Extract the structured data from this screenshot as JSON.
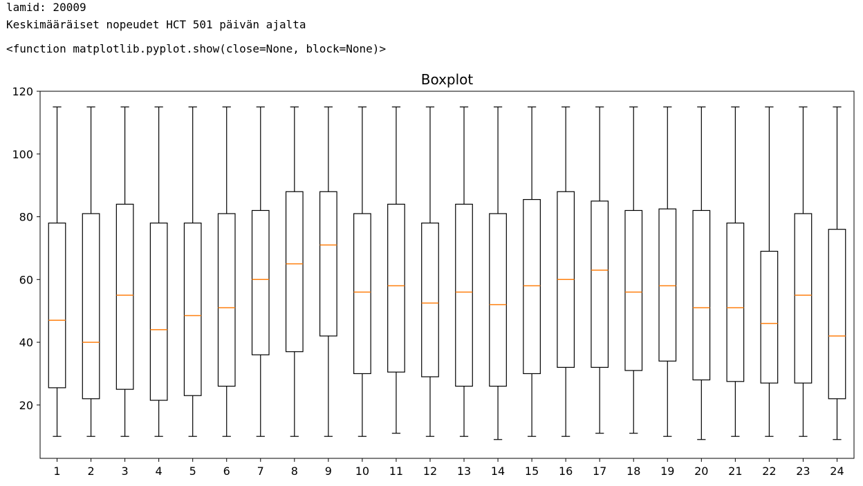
{
  "output": {
    "line1": "lamid: 20009",
    "line2": "Keskimääräiset nopeudet HCT 501 päivän ajalta",
    "line3": "<function matplotlib.pyplot.show(close=None, block=None)>"
  },
  "colors": {
    "box": "#000000",
    "median": "#ff7f0e",
    "axes": "#000000",
    "background": "#ffffff"
  },
  "chart_data": {
    "type": "boxplot",
    "title": "Boxplot",
    "xlabel": "",
    "ylabel": "",
    "ylim": [
      3,
      120
    ],
    "yticks": [
      20,
      40,
      60,
      80,
      100,
      120
    ],
    "grid": false,
    "categories": [
      "1",
      "2",
      "3",
      "4",
      "5",
      "6",
      "7",
      "8",
      "9",
      "10",
      "11",
      "12",
      "13",
      "14",
      "15",
      "16",
      "17",
      "18",
      "19",
      "20",
      "21",
      "22",
      "23",
      "24"
    ],
    "boxes": [
      {
        "whislo": 10,
        "q1": 25.5,
        "med": 47,
        "q3": 78,
        "whishi": 115
      },
      {
        "whislo": 10,
        "q1": 22,
        "med": 40,
        "q3": 81,
        "whishi": 115
      },
      {
        "whislo": 10,
        "q1": 25,
        "med": 55,
        "q3": 84,
        "whishi": 115
      },
      {
        "whislo": 10,
        "q1": 21.5,
        "med": 44,
        "q3": 78,
        "whishi": 115
      },
      {
        "whislo": 10,
        "q1": 23,
        "med": 48.5,
        "q3": 78,
        "whishi": 115
      },
      {
        "whislo": 10,
        "q1": 26,
        "med": 51,
        "q3": 81,
        "whishi": 115
      },
      {
        "whislo": 10,
        "q1": 36,
        "med": 60,
        "q3": 82,
        "whishi": 115
      },
      {
        "whislo": 10,
        "q1": 37,
        "med": 65,
        "q3": 88,
        "whishi": 115
      },
      {
        "whislo": 10,
        "q1": 42,
        "med": 71,
        "q3": 88,
        "whishi": 115
      },
      {
        "whislo": 10,
        "q1": 30,
        "med": 56,
        "q3": 81,
        "whishi": 115
      },
      {
        "whislo": 11,
        "q1": 30.5,
        "med": 58,
        "q3": 84,
        "whishi": 115
      },
      {
        "whislo": 10,
        "q1": 29,
        "med": 52.5,
        "q3": 78,
        "whishi": 115
      },
      {
        "whislo": 10,
        "q1": 26,
        "med": 56,
        "q3": 84,
        "whishi": 115
      },
      {
        "whislo": 9,
        "q1": 26,
        "med": 52,
        "q3": 81,
        "whishi": 115
      },
      {
        "whislo": 10,
        "q1": 30,
        "med": 58,
        "q3": 85.5,
        "whishi": 115
      },
      {
        "whislo": 10,
        "q1": 32,
        "med": 60,
        "q3": 88,
        "whishi": 115
      },
      {
        "whislo": 11,
        "q1": 32,
        "med": 63,
        "q3": 85,
        "whishi": 115
      },
      {
        "whislo": 11,
        "q1": 31,
        "med": 56,
        "q3": 82,
        "whishi": 115
      },
      {
        "whislo": 10,
        "q1": 34,
        "med": 58,
        "q3": 82.5,
        "whishi": 115
      },
      {
        "whislo": 9,
        "q1": 28,
        "med": 51,
        "q3": 82,
        "whishi": 115
      },
      {
        "whislo": 10,
        "q1": 27.5,
        "med": 51,
        "q3": 78,
        "whishi": 115
      },
      {
        "whislo": 10,
        "q1": 27,
        "med": 46,
        "q3": 69,
        "whishi": 115
      },
      {
        "whislo": 10,
        "q1": 27,
        "med": 55,
        "q3": 81,
        "whishi": 115
      },
      {
        "whislo": 9,
        "q1": 22,
        "med": 42,
        "q3": 76,
        "whishi": 115
      }
    ]
  }
}
